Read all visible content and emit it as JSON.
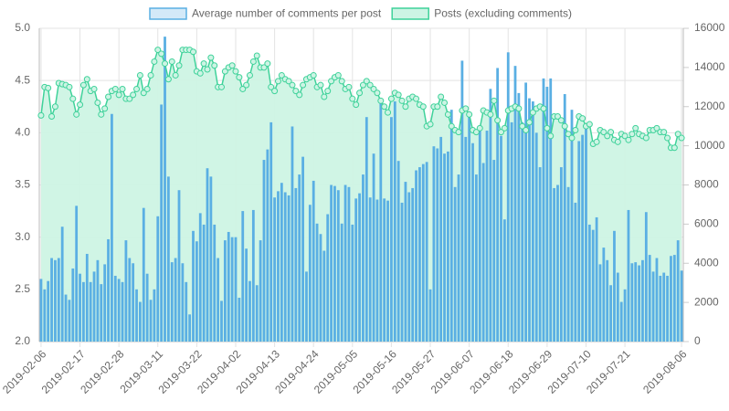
{
  "chart_data": {
    "type": "bar",
    "categories": [
      "2019-02-06",
      null,
      null,
      null,
      null,
      null,
      null,
      null,
      null,
      null,
      null,
      "2019-02-17",
      null,
      null,
      null,
      null,
      null,
      null,
      null,
      null,
      null,
      null,
      "2019-02-28",
      null,
      null,
      null,
      null,
      null,
      null,
      null,
      null,
      null,
      null,
      "2019-03-11",
      null,
      null,
      null,
      null,
      null,
      null,
      null,
      null,
      null,
      null,
      "2019-03-22",
      null,
      null,
      null,
      null,
      null,
      null,
      null,
      null,
      null,
      null,
      "2019-04-02",
      null,
      null,
      null,
      null,
      null,
      null,
      null,
      null,
      null,
      null,
      "2019-04-13",
      null,
      null,
      null,
      null,
      null,
      null,
      null,
      null,
      null,
      null,
      "2019-04-24",
      null,
      null,
      null,
      null,
      null,
      null,
      null,
      null,
      null,
      null,
      "2019-05-05",
      null,
      null,
      null,
      null,
      null,
      null,
      null,
      null,
      null,
      null,
      "2019-05-16",
      null,
      null,
      null,
      null,
      null,
      null,
      null,
      null,
      null,
      null,
      "2019-05-27",
      null,
      null,
      null,
      null,
      null,
      null,
      null,
      null,
      null,
      null,
      "2019-06-07",
      null,
      null,
      null,
      null,
      null,
      null,
      null,
      null,
      null,
      null,
      "2019-06-18",
      null,
      null,
      null,
      null,
      null,
      null,
      null,
      null,
      null,
      null,
      "2019-06-29",
      null,
      null,
      null,
      null,
      null,
      null,
      null,
      null,
      null,
      null,
      "2019-07-10",
      null,
      null,
      null,
      null,
      null,
      null,
      null,
      null,
      null,
      null,
      "2019-07-21",
      null,
      null,
      null,
      null,
      null,
      null,
      null,
      null,
      null,
      null,
      null,
      null,
      null,
      null,
      null,
      "2019-08-06"
    ],
    "series": [
      {
        "name": "Average number of comments per post",
        "type": "bar",
        "axis": "y",
        "color": "#5aafe3",
        "fill": "#d3e9f8",
        "values": [
          2.6,
          2.5,
          2.58,
          2.8,
          2.78,
          2.8,
          3.1,
          2.45,
          2.4,
          2.7,
          3.3,
          2.65,
          2.57,
          2.84,
          2.57,
          2.67,
          2.78,
          2.55,
          2.74,
          2.98,
          4.18,
          2.63,
          2.6,
          2.57,
          2.97,
          2.8,
          2.75,
          2.5,
          2.38,
          3.28,
          2.65,
          2.4,
          2.5,
          3.2,
          4.27,
          4.92,
          3.58,
          2.76,
          2.8,
          3.45,
          2.75,
          2.57,
          2.26,
          3.06,
          2.96,
          3.23,
          3.12,
          3.66,
          3.58,
          3.12,
          2.8,
          2.39,
          2.97,
          3.05,
          3.0,
          3.0,
          2.42,
          3.25,
          2.89,
          2.58,
          3.26,
          2.54,
          2.97,
          3.74,
          3.84,
          4.1,
          3.38,
          3.44,
          3.52,
          3.43,
          3.4,
          4.06,
          3.47,
          3.6,
          3.77,
          2.67,
          3.31,
          3.54,
          3.13,
          3.03,
          2.87,
          3.22,
          3.5,
          3.49,
          3.45,
          3.13,
          3.5,
          3.48,
          3.12,
          3.37,
          3.42,
          3.6,
          4.15,
          3.38,
          3.8,
          3.36,
          4.3,
          3.37,
          3.35,
          4.15,
          4.3,
          3.73,
          3.33,
          3.53,
          3.43,
          3.47,
          3.64,
          3.67,
          3.7,
          3.72,
          2.5,
          3.87,
          3.85,
          3.96,
          3.8,
          3.82,
          4.22,
          3.48,
          3.6,
          4.69,
          3.96,
          4.2,
          3.9,
          3.6,
          4.04,
          3.71,
          4.02,
          4.42,
          3.74,
          4.62,
          3.97,
          3.17,
          4.77,
          4.1,
          4.64,
          4.38,
          4.1,
          4.48,
          4.33,
          4.3,
          4.0,
          3.67,
          4.52,
          4.44,
          4.52,
          3.47,
          3.5,
          3.67,
          4.37,
          3.48,
          4.22,
          3.33,
          3.92,
          3.98,
          4.07,
          3.12,
          3.07,
          3.19,
          2.74,
          2.9,
          2.78,
          2.54,
          3.06,
          2.66,
          2.38,
          2.5,
          3.26,
          2.75,
          2.76,
          2.73,
          2.78,
          3.24,
          2.83,
          2.67,
          2.8,
          2.63,
          2.66,
          2.63,
          2.82,
          2.83,
          2.97,
          2.68
        ]
      },
      {
        "name": "Posts (excluding comments)",
        "type": "line",
        "axis": "y2",
        "color": "#3fd29a",
        "fill": "#cdf4e4",
        "values": [
          11550,
          13000,
          12950,
          11500,
          12000,
          13200,
          13150,
          13100,
          13000,
          12400,
          11600,
          12100,
          13100,
          13400,
          12800,
          12900,
          12200,
          11600,
          11900,
          12500,
          12800,
          12900,
          12600,
          12900,
          12400,
          12400,
          12600,
          12900,
          13600,
          12700,
          12900,
          13600,
          14300,
          14900,
          14700,
          14200,
          13400,
          14300,
          13600,
          14100,
          14900,
          14900,
          14900,
          14800,
          13800,
          13700,
          14200,
          13900,
          14500,
          14100,
          13000,
          13000,
          13800,
          14000,
          14100,
          13800,
          13500,
          12900,
          13100,
          13600,
          14300,
          14600,
          14000,
          14000,
          14200,
          13000,
          12800,
          13300,
          13600,
          13400,
          13300,
          13100,
          12800,
          12600,
          13100,
          13400,
          13500,
          13600,
          13000,
          13100,
          12500,
          12800,
          13300,
          13500,
          13600,
          13300,
          12900,
          13000,
          12400,
          12100,
          12700,
          13100,
          13300,
          13100,
          12900,
          12700,
          12300,
          12000,
          11700,
          12400,
          12700,
          12600,
          12300,
          12000,
          12400,
          12500,
          12400,
          12100,
          12000,
          11000,
          11100,
          12000,
          12000,
          12500,
          12200,
          11600,
          11000,
          10800,
          10700,
          11800,
          11900,
          11600,
          10800,
          10700,
          10900,
          11800,
          11700,
          11600,
          12300,
          11300,
          10700,
          10900,
          11800,
          11900,
          12000,
          11900,
          11000,
          10800,
          11200,
          11700,
          11900,
          12000,
          11900,
          10900,
          10500,
          11500,
          11500,
          11300,
          11000,
          10600,
          10400,
          10800,
          11500,
          11400,
          11000,
          11100,
          10100,
          10200,
          10800,
          10700,
          10500,
          10700,
          10300,
          10200,
          10600,
          10500,
          10300,
          10600,
          10900,
          10600,
          10500,
          10400,
          10800,
          10800,
          10900,
          10700,
          10700,
          10400,
          9900,
          9900,
          10600,
          10400
        ]
      }
    ],
    "ylim": [
      2,
      5
    ],
    "yticks": [
      {
        "value": 2,
        "label": "2.0"
      },
      {
        "value": 2.5,
        "label": "2.5"
      },
      {
        "value": 3,
        "label": "3.0"
      },
      {
        "value": 3.5,
        "label": "3.5"
      },
      {
        "value": 4,
        "label": "4.0"
      },
      {
        "value": 4.5,
        "label": "4.5"
      },
      {
        "value": 5,
        "label": "5.0"
      }
    ],
    "y2lim": [
      0,
      16000
    ],
    "y2ticks": [
      0,
      2000,
      4000,
      6000,
      8000,
      10000,
      12000,
      14000,
      16000
    ],
    "grid": true,
    "legend": "top"
  }
}
